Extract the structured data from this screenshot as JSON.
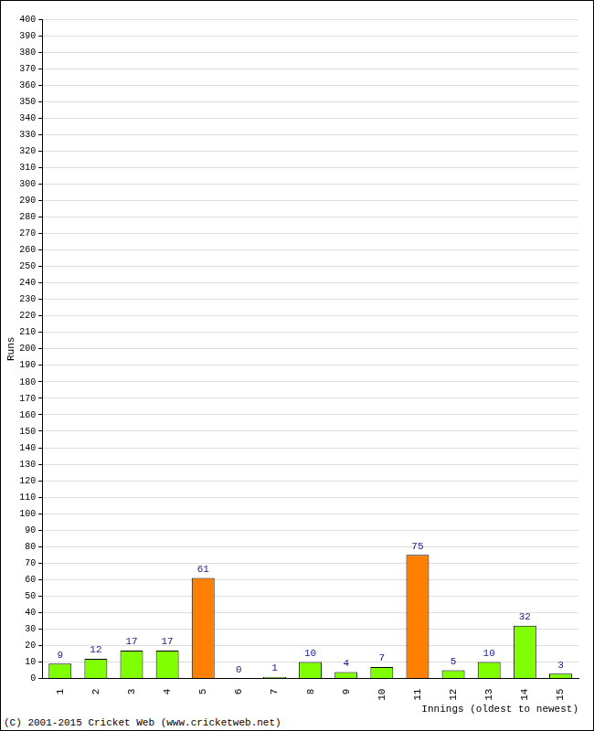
{
  "chart_data": {
    "type": "bar",
    "categories": [
      "1",
      "2",
      "3",
      "4",
      "5",
      "6",
      "7",
      "8",
      "9",
      "10",
      "11",
      "12",
      "13",
      "14",
      "15"
    ],
    "values": [
      9,
      12,
      17,
      17,
      61,
      0,
      1,
      10,
      4,
      7,
      75,
      5,
      10,
      32,
      3
    ],
    "colors": [
      "#80ff00",
      "#80ff00",
      "#80ff00",
      "#80ff00",
      "#ff8000",
      "#80ff00",
      "#80ff00",
      "#80ff00",
      "#80ff00",
      "#80ff00",
      "#ff8000",
      "#80ff00",
      "#80ff00",
      "#80ff00",
      "#80ff00"
    ],
    "x_label": "Innings (oldest to newest)",
    "y_label": "Runs",
    "ylim": [
      0,
      400
    ],
    "yticks": [
      0,
      10,
      20,
      30,
      40,
      50,
      60,
      70,
      80,
      90,
      100,
      110,
      120,
      130,
      140,
      150,
      160,
      170,
      180,
      190,
      200,
      210,
      220,
      230,
      240,
      250,
      260,
      270,
      280,
      290,
      300,
      310,
      320,
      330,
      340,
      350,
      360,
      370,
      380,
      390,
      400
    ],
    "grid": true,
    "data_labels": true,
    "annotations": [
      "(C) 2001-2015 Cricket Web (www.cricketweb.net)"
    ]
  }
}
